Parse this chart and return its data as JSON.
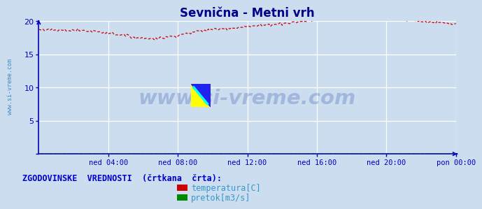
{
  "title": "Sevnična - Metni vrh",
  "title_color": "#00008B",
  "title_fontsize": 12,
  "bg_color": "#ccddf0",
  "plot_bg_color": "#ccddf0",
  "grid_color": "#ffffff",
  "axis_color": "#0000bb",
  "tick_color": "#0000bb",
  "watermark_text": "www.si-vreme.com",
  "watermark_color": "#3355aa",
  "watermark_alpha": 0.28,
  "ylim": [
    0,
    20
  ],
  "yticks": [
    0,
    5,
    10,
    15,
    20
  ],
  "ytick_labels": [
    "",
    "5",
    "10",
    "15",
    "20"
  ],
  "xlim": [
    0,
    288
  ],
  "xtick_positions": [
    48,
    96,
    144,
    192,
    240,
    288
  ],
  "xtick_labels": [
    "ned 04:00",
    "ned 08:00",
    "ned 12:00",
    "ned 16:00",
    "ned 20:00",
    "pon 00:00"
  ],
  "temp_color": "#cc0000",
  "flow_color": "#008800",
  "legend_text": "ZGODOVINSKE  VREDNOSTI  (črtkana  črta):",
  "legend_color": "#0000cc",
  "legend_fontsize": 8.5,
  "legend_items": [
    "temperatura[C]",
    "pretok[m3/s]"
  ],
  "legend_item_colors": [
    "#cc0000",
    "#008800"
  ]
}
